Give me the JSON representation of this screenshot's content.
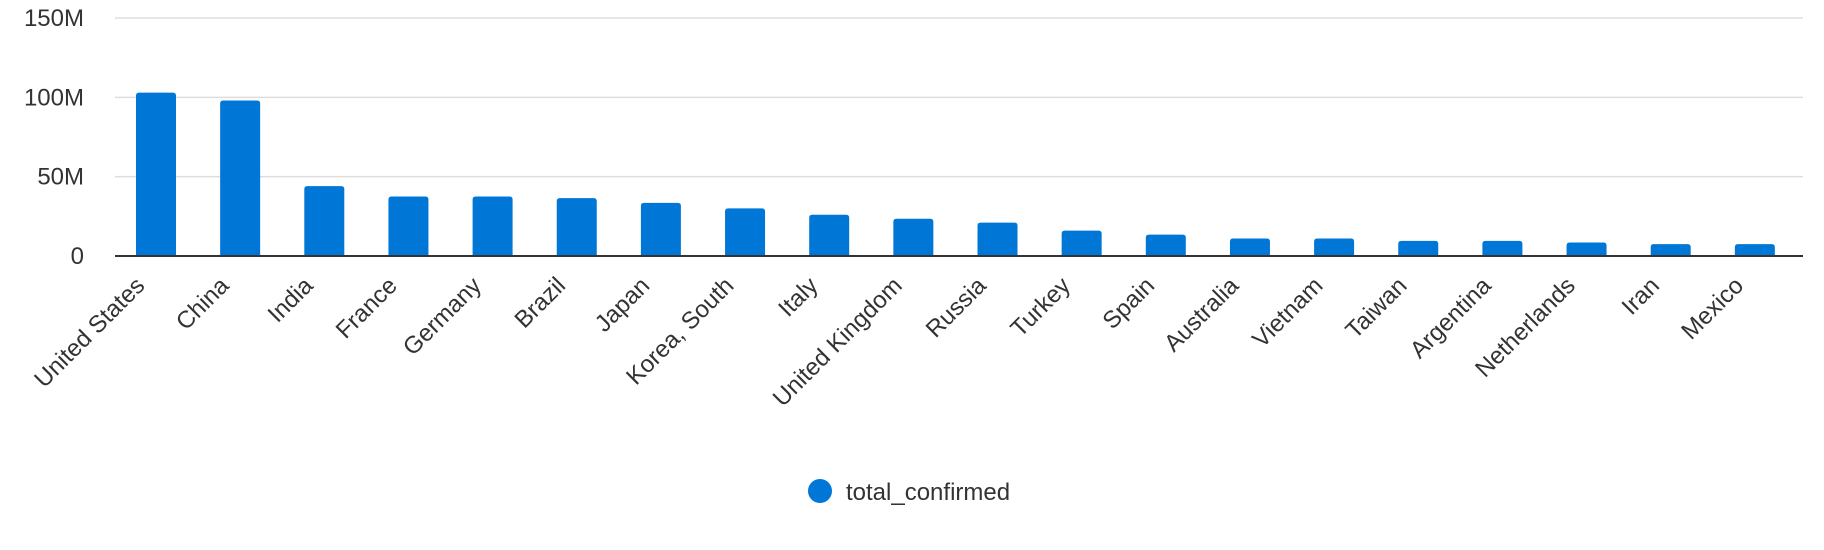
{
  "chart_data": {
    "type": "bar",
    "categories": [
      "United States",
      "China",
      "India",
      "France",
      "Germany",
      "Brazil",
      "Japan",
      "Korea, South",
      "Italy",
      "United Kingdom",
      "Russia",
      "Turkey",
      "Spain",
      "Australia",
      "Vietnam",
      "Taiwan",
      "Argentina",
      "Netherlands",
      "Iran",
      "Mexico"
    ],
    "series": [
      {
        "name": "total_confirmed",
        "values": [
          103000000,
          98000000,
          44000000,
          37500000,
          37500000,
          36500000,
          33500000,
          30000000,
          26000000,
          23500000,
          21000000,
          16000000,
          13500000,
          11000000,
          11000000,
          9500000,
          9500000,
          8500000,
          7500000,
          7500000
        ]
      }
    ],
    "yticks": [
      {
        "value": 0,
        "label": "0"
      },
      {
        "value": 50000000,
        "label": "50M"
      },
      {
        "value": 100000000,
        "label": "100M"
      },
      {
        "value": 150000000,
        "label": "150M"
      }
    ],
    "ylim": [
      0,
      150000000
    ],
    "grid": true,
    "legend_position": "bottom",
    "colors": {
      "bar": "#0077d6"
    },
    "title": "",
    "xlabel": "",
    "ylabel": ""
  }
}
